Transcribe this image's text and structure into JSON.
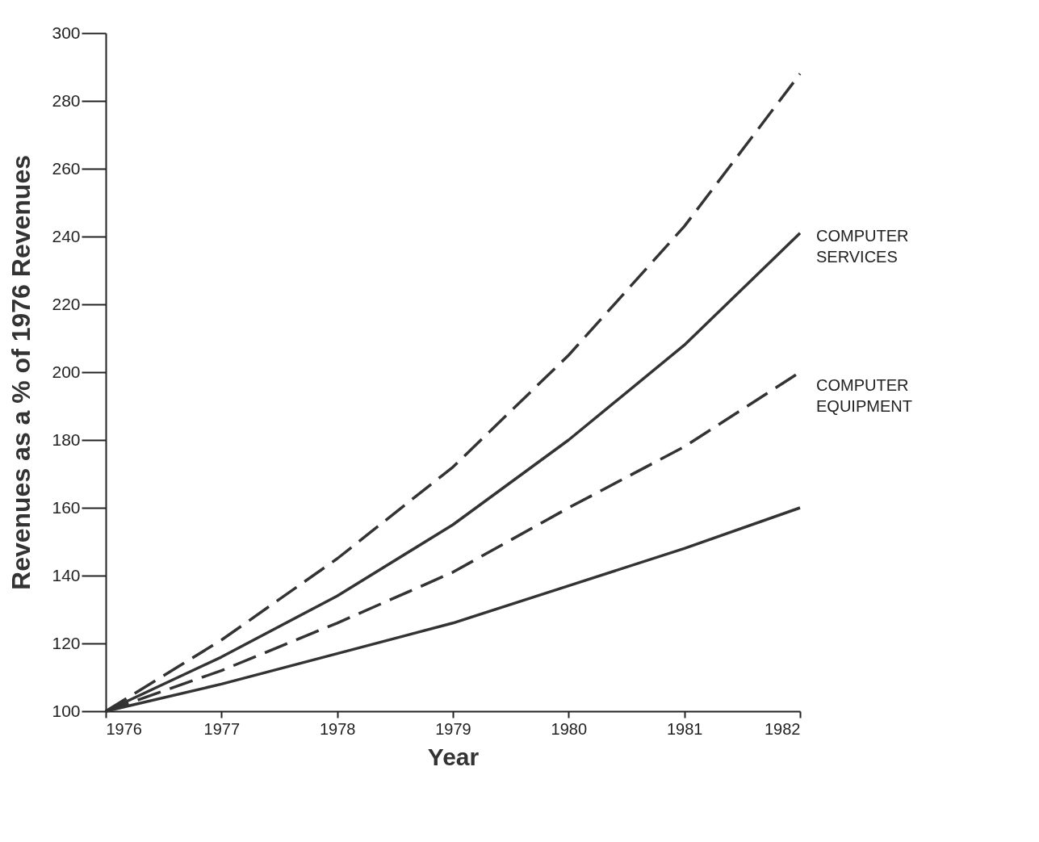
{
  "chart_data": {
    "type": "line",
    "xlabel": "Year",
    "ylabel": "Revenues as a % of 1976 Revenues",
    "x": [
      1976,
      1977,
      1978,
      1979,
      1980,
      1981,
      1982
    ],
    "series": [
      {
        "color": "#333333",
        "line_style": "dashed",
        "values": [
          100,
          121,
          145,
          172,
          205,
          243,
          288
        ]
      },
      {
        "color": "#333333",
        "line_style": "solid",
        "values": [
          100,
          116,
          134,
          155,
          180,
          208,
          241
        ]
      },
      {
        "color": "#333333",
        "line_style": "dashed",
        "values": [
          100,
          112,
          126,
          141,
          160,
          178,
          200
        ]
      },
      {
        "color": "#333333",
        "line_style": "solid",
        "values": [
          100,
          108,
          117,
          126,
          137,
          148,
          160
        ]
      }
    ],
    "annotations": [
      "COMPUTER SERVICES",
      "COMPUTER EQUIPMENT"
    ],
    "xlim": [
      1976,
      1982
    ],
    "xticks": [
      1976,
      1977,
      1978,
      1979,
      1980,
      1981,
      1982
    ],
    "ylim": [
      100,
      300
    ],
    "yticks": [
      100,
      120,
      140,
      160,
      180,
      200,
      220,
      240,
      260,
      280,
      300
    ],
    "grid": false,
    "marker": "none"
  }
}
